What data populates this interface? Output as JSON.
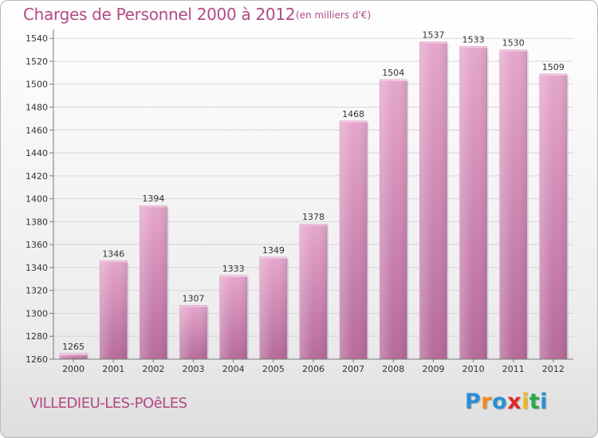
{
  "header": {
    "title": "Charges de Personnel 2000 à 2012",
    "unit": "(en milliers d'€)"
  },
  "footer": {
    "city": "VILLEDIEU-LES-POêLES",
    "logo_letters": [
      "P",
      "r",
      "o",
      "x",
      "i",
      "t",
      "i"
    ],
    "logo_colors": [
      "#2a8fd6",
      "#f08a1a",
      "#2a8fd6",
      "#e0262a",
      "#f0b81a",
      "#2aa84a",
      "#2a8fd6"
    ]
  },
  "colors": {
    "bar": "#d990bd",
    "bar_dark": "#b66a9a",
    "text": "#b14a84"
  },
  "chart_data": {
    "type": "bar",
    "title": "Charges de Personnel 2000 à 2012",
    "subtitle": "(en milliers d'€)",
    "categories": [
      "2000",
      "2001",
      "2002",
      "2003",
      "2004",
      "2005",
      "2006",
      "2007",
      "2008",
      "2009",
      "2010",
      "2011",
      "2012"
    ],
    "values": [
      1265,
      1346,
      1394,
      1307,
      1333,
      1349,
      1378,
      1468,
      1504,
      1537,
      1533,
      1530,
      1509
    ],
    "ylim": [
      1260,
      1545
    ],
    "yticks": [
      1260,
      1280,
      1300,
      1320,
      1340,
      1360,
      1380,
      1400,
      1420,
      1440,
      1460,
      1480,
      1500,
      1520,
      1540
    ],
    "grid": true,
    "xlabel": "",
    "ylabel": ""
  }
}
